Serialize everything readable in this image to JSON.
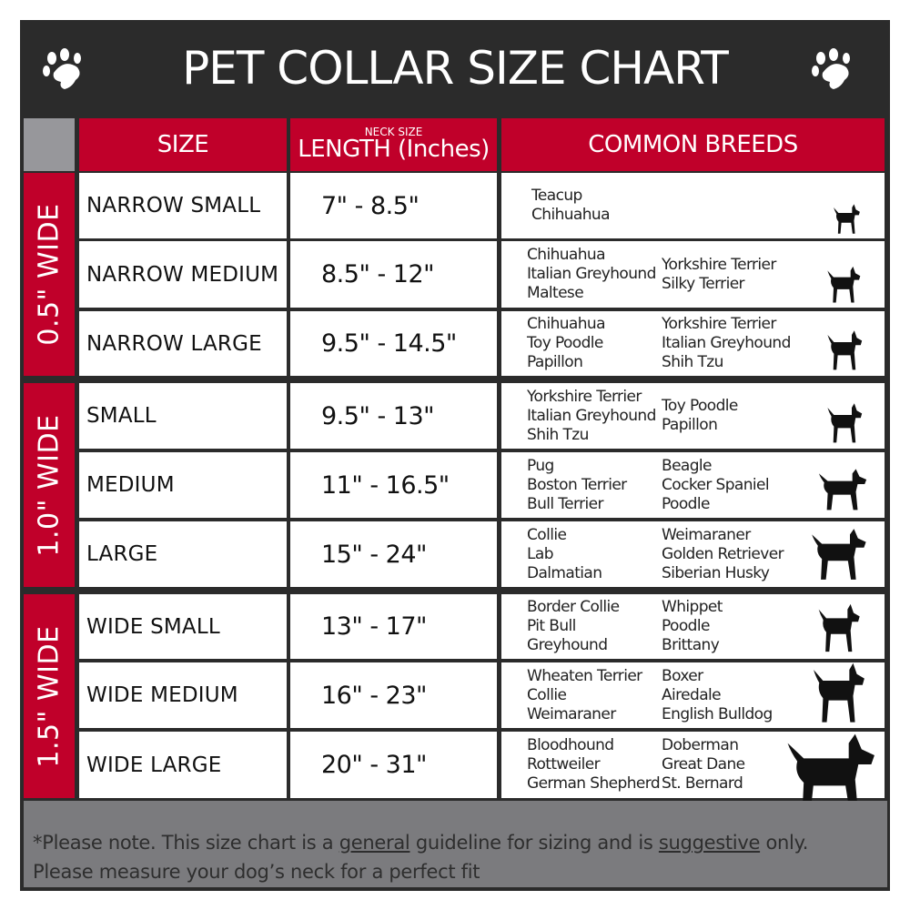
{
  "title": "PET COLLAR SIZE CHART",
  "icons": {
    "left": "paw-icon",
    "right": "paw-icon"
  },
  "colors": {
    "title_bg": "#2b2b2b",
    "header_red": "#c0002a",
    "footer_gray": "#7b7b7e"
  },
  "header": {
    "size": "SIZE",
    "length_small": "NECK SIZE",
    "length": "LENGTH (Inches)",
    "breeds": "COMMON BREEDS"
  },
  "groups": [
    "0.5\" WIDE",
    "1.0\" WIDE",
    "1.5\" WIDE"
  ],
  "rows": [
    {
      "size": "NARROW SMALL",
      "length": "7\" - 8.5\"",
      "breeds1": "Teacup\nChihuahua",
      "breeds2": ""
    },
    {
      "size": "NARROW MEDIUM",
      "length": "8.5\" - 12\"",
      "breeds1": "Chihuahua\nItalian Greyhound\nMaltese",
      "breeds2": "Yorkshire Terrier\nSilky Terrier"
    },
    {
      "size": "NARROW LARGE",
      "length": "9.5\" - 14.5\"",
      "breeds1": "Chihuahua\nToy Poodle\nPapillon",
      "breeds2": "Yorkshire Terrier\nItalian Greyhound\nShih Tzu"
    },
    {
      "size": "SMALL",
      "length": "9.5\" - 13\"",
      "breeds1": "Yorkshire Terrier\nItalian Greyhound\nShih Tzu",
      "breeds2": "Toy Poodle\nPapillon"
    },
    {
      "size": "MEDIUM",
      "length": "11\" - 16.5\"",
      "breeds1": "Pug\nBoston Terrier\nBull Terrier",
      "breeds2": "Beagle\nCocker Spaniel\nPoodle"
    },
    {
      "size": "LARGE",
      "length": "15\" - 24\"",
      "breeds1": "Collie\nLab\nDalmatian",
      "breeds2": "Weimaraner\nGolden Retriever\nSiberian Husky"
    },
    {
      "size": "WIDE SMALL",
      "length": "13\" - 17\"",
      "breeds1": "Border Collie\nPit Bull\nGreyhound",
      "breeds2": "Whippet\nPoodle\nBrittany"
    },
    {
      "size": "WIDE MEDIUM",
      "length": "16\" - 23\"",
      "breeds1": "Wheaten Terrier\nCollie\nWeimaraner",
      "breeds2": "Boxer\nAiredale\nEnglish Bulldog"
    },
    {
      "size": "WIDE LARGE",
      "length": "20\" - 31\"",
      "breeds1": "Bloodhound\nRottweiler\nGerman Shepherd",
      "breeds2": "Doberman\nGreat Dane\nSt. Bernard"
    }
  ],
  "footer": {
    "part1": "*Please note. This size chart is a",
    "emph1": "general",
    "part2": "guideline for sizing and is",
    "emph2": "suggestive",
    "part3": "only.",
    "line2": "Please measure your dog’s neck for a perfect fit"
  }
}
